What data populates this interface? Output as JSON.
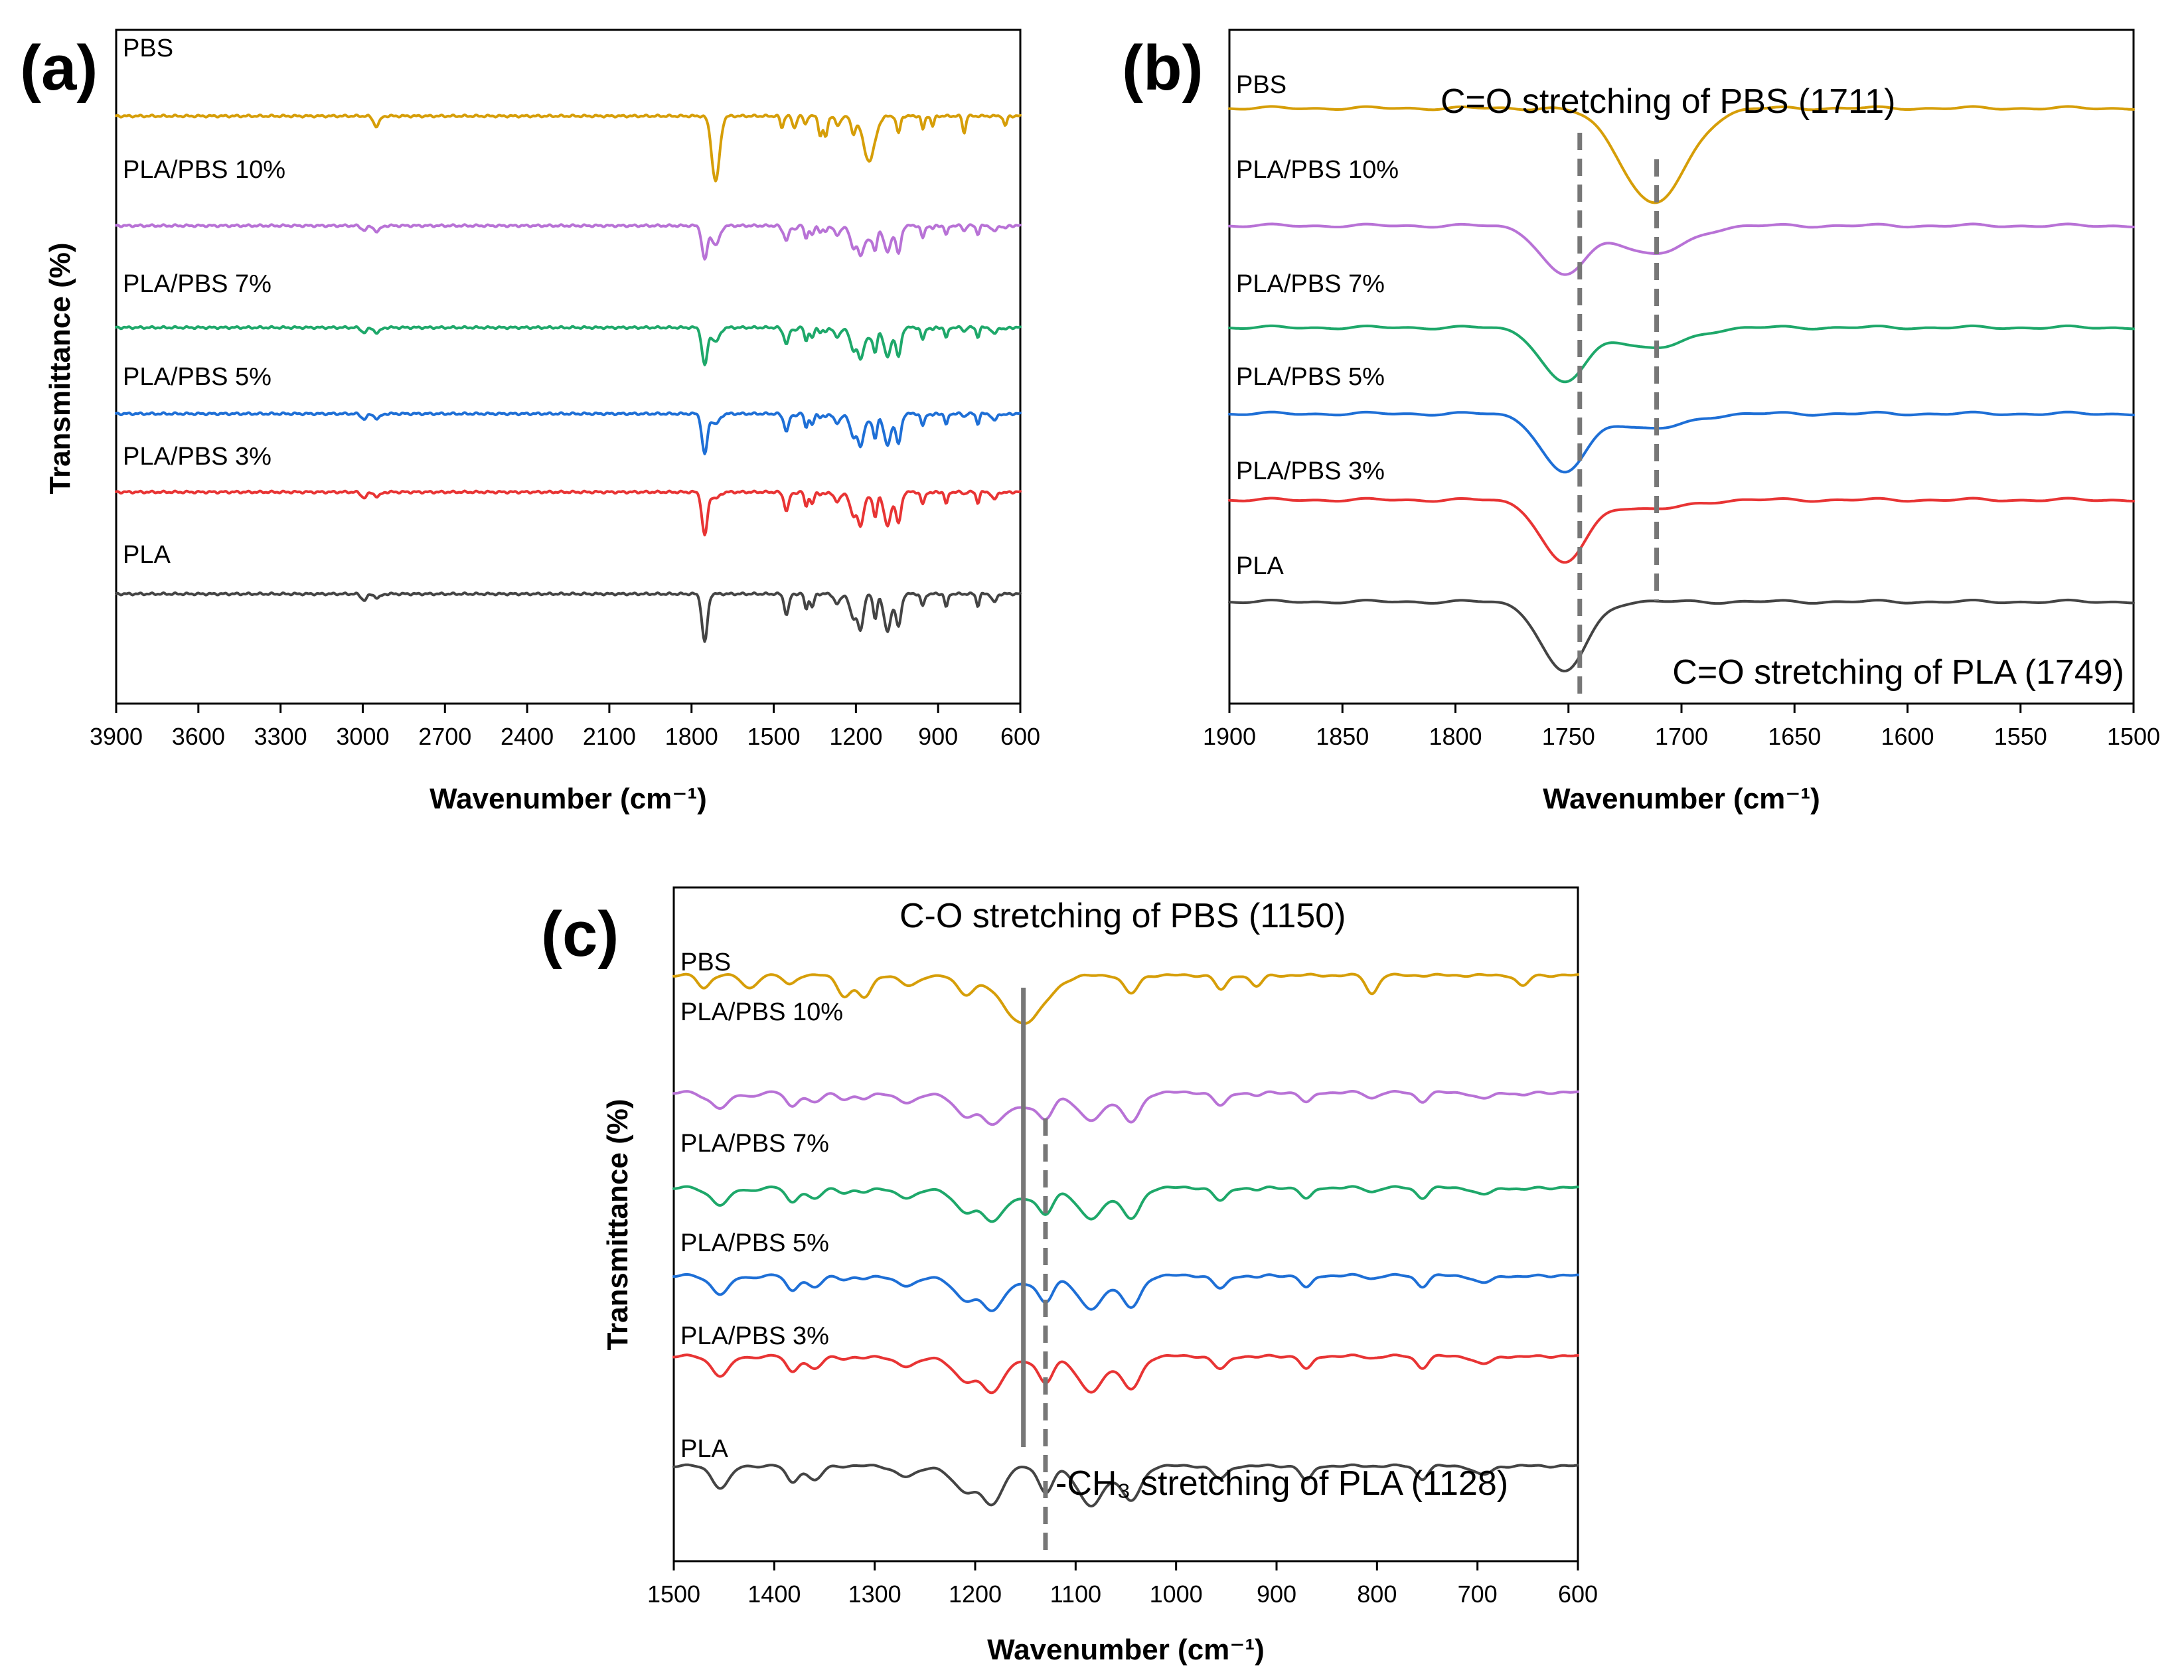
{
  "colors": {
    "PBS": "#d69e08",
    "PLA/PBS 10%": "#b872d6",
    "PLA/PBS 7%": "#1ea86a",
    "PLA/PBS 5%": "#1e6fd6",
    "PLA/PBS 3%": "#e83434",
    "PLA": "#444444"
  },
  "chart_data": [
    {
      "panel": "(a)",
      "type": "line",
      "xlabel": "Wavenumber (cm⁻¹)",
      "ylabel": "Transmittance (%)",
      "xlim": [
        3900,
        600
      ],
      "xticks": [
        3900,
        3600,
        3300,
        3000,
        2700,
        2400,
        2100,
        1800,
        1500,
        1200,
        900,
        600
      ],
      "series_order": [
        "PBS",
        "PLA/PBS 10%",
        "PLA/PBS 7%",
        "PLA/PBS 5%",
        "PLA/PBS 3%",
        "PLA"
      ],
      "offsets": [
        3.75,
        3.05,
        2.4,
        1.85,
        1.35,
        0.7
      ],
      "annotations": []
    },
    {
      "panel": "(b)",
      "type": "line",
      "xlabel": "Wavenumber (cm⁻¹)",
      "ylabel": "",
      "xlim": [
        1900,
        1500
      ],
      "xticks": [
        1900,
        1850,
        1800,
        1750,
        1700,
        1650,
        1600,
        1550,
        1500
      ],
      "series_order": [
        "PBS",
        "PLA/PBS 10%",
        "PLA/PBS 7%",
        "PLA/PBS 5%",
        "PLA/PBS 3%",
        "PLA"
      ],
      "offsets": [
        3.8,
        3.05,
        2.4,
        1.85,
        1.3,
        0.65
      ],
      "annotations": [
        {
          "text": "C=O stretching of PBS (1711)",
          "x": 1711,
          "style": "dashed"
        },
        {
          "text": "C=O stretching of PLA (1749)",
          "x": 1745,
          "style": "dashed"
        }
      ]
    },
    {
      "panel": "(c)",
      "type": "line",
      "xlabel": "Wavenumber (cm⁻¹)",
      "ylabel": "Transmittance (%)",
      "xlim": [
        1500,
        600
      ],
      "xticks": [
        1500,
        1400,
        1300,
        1200,
        1100,
        1000,
        900,
        800,
        700,
        600
      ],
      "series_order": [
        "PBS",
        "PLA/PBS 10%",
        "PLA/PBS 7%",
        "PLA/PBS 5%",
        "PLA/PBS 3%",
        "PLA"
      ],
      "offsets": [
        4.0,
        3.2,
        2.55,
        1.95,
        1.4,
        0.65
      ],
      "annotations": [
        {
          "text": "C-O stretching of PBS (1150)",
          "x": 1152,
          "style": "solid"
        },
        {
          "text": "-CH₃ stretching of PLA (1128)",
          "x": 1130,
          "style": "dashed"
        }
      ]
    }
  ]
}
